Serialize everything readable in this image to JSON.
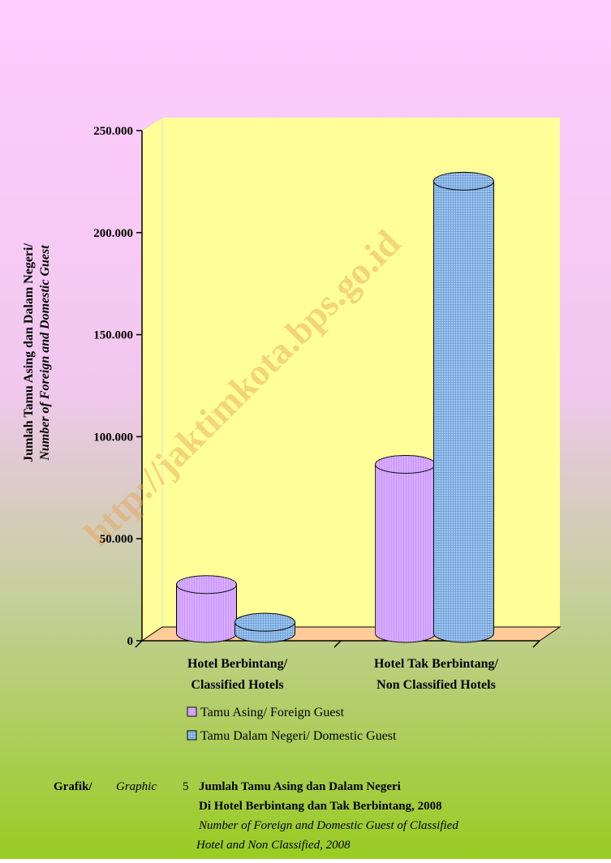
{
  "chart_data": {
    "type": "bar3d",
    "y_label": [
      "Jumlah Tamu Asing dan Dalam Negeri/",
      "Number of Foreign and Domestic Guest"
    ],
    "categories": [
      [
        "Hotel Berbintang/",
        "Classified Hotels"
      ],
      [
        "Hotel Tak Berbintang/",
        "Non Classified Hotels"
      ]
    ],
    "series": [
      {
        "name": "Tamu Asing/ Foreign Guest",
        "color": "#cc99ff",
        "values": [
          24000,
          83000
        ]
      },
      {
        "name": "Tamu Dalam Negeri/ Domestic Guest",
        "color": "#99ccff",
        "values": [
          5500,
          222000
        ]
      }
    ],
    "ylim": [
      0,
      250000
    ],
    "yticks": [
      0,
      {
        "value": 50000,
        "label": "50.000"
      },
      {
        "value": 100000,
        "label": "100.000"
      },
      {
        "value": 150000,
        "label": "150.000"
      },
      {
        "value": 200000,
        "label": "200.000"
      },
      {
        "value": 250000,
        "label": "250.000"
      }
    ],
    "watermark": "http://jaktimkota.bps.go.id",
    "caption": {
      "prefix": "Grafik/",
      "prefix_italic": "Graphic",
      "number": "5",
      "title": [
        "Jumlah Tamu Asing dan Dalam Negeri",
        "Di Hotel Berbintang dan Tak Berbintang, 2008"
      ],
      "subtitle": [
        "Number of Foreign and Domestic Guest of Classified",
        "Hotel and Non Classified, 2008"
      ]
    }
  }
}
